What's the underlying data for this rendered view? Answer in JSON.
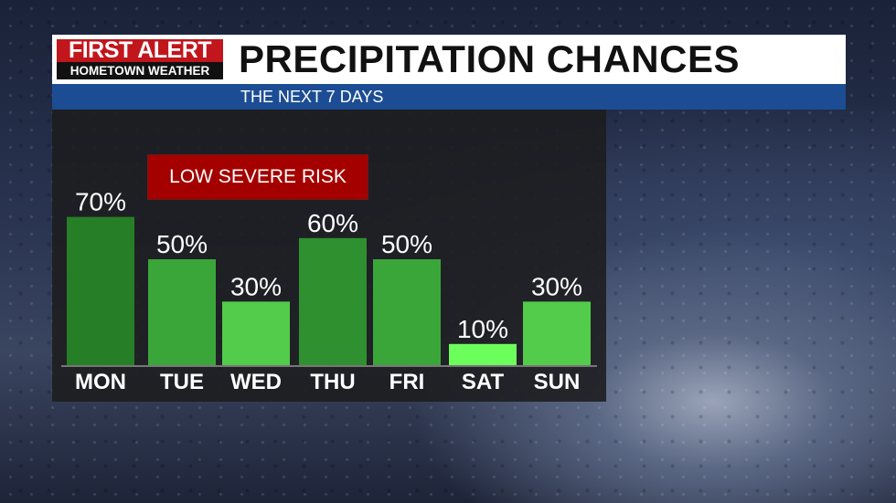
{
  "header": {
    "logo": {
      "line1": "FIRST ALERT",
      "line2": "HOMETOWN WEATHER"
    },
    "title": "PRECIPITATION CHANCES",
    "subtitle": "THE NEXT 7 DAYS"
  },
  "badge": {
    "label": "LOW SEVERE RISK",
    "color": "#a50000"
  },
  "chart_data": {
    "type": "bar",
    "title": "PRECIPITATION CHANCES",
    "subtitle": "THE NEXT 7 DAYS",
    "categories": [
      "MON",
      "TUE",
      "WED",
      "THU",
      "FRI",
      "SAT",
      "SUN"
    ],
    "values": [
      70,
      50,
      30,
      60,
      50,
      10,
      30
    ],
    "data_labels": [
      "70%",
      "50%",
      "30%",
      "60%",
      "50%",
      "10%",
      "30%"
    ],
    "bar_colors": [
      "#267f26",
      "#3aa63a",
      "#52cc4a",
      "#2e902e",
      "#3aa63a",
      "#6cff5c",
      "#52cc4a"
    ],
    "ylim": [
      0,
      100
    ],
    "grid": false
  }
}
